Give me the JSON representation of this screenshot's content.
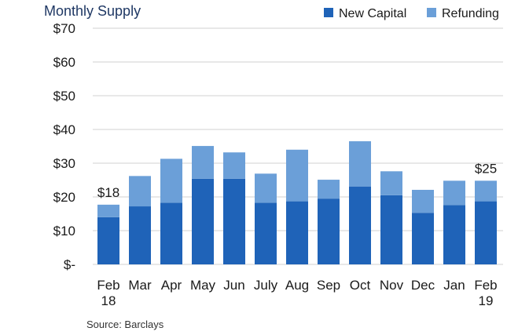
{
  "chart_data": {
    "type": "bar",
    "stacked": true,
    "title": "Monthly Supply",
    "categories": [
      [
        "Feb",
        "18"
      ],
      [
        "Mar"
      ],
      [
        "Apr"
      ],
      [
        "May"
      ],
      [
        "Jun"
      ],
      [
        "July"
      ],
      [
        "Aug"
      ],
      [
        "Sep"
      ],
      [
        "Oct"
      ],
      [
        "Nov"
      ],
      [
        "Dec"
      ],
      [
        "Jan"
      ],
      [
        "Feb",
        "19"
      ]
    ],
    "series": [
      {
        "name": "New Capital",
        "color": "#1f63b8",
        "values": [
          14,
          17.2,
          18.3,
          25.4,
          25.4,
          18.3,
          18.7,
          19.5,
          23.1,
          20.5,
          15.3,
          17.6,
          18.7
        ]
      },
      {
        "name": "Refunding",
        "color": "#6b9fd8",
        "values": [
          3.7,
          9.0,
          13.0,
          9.7,
          7.8,
          8.6,
          15.3,
          5.6,
          13.4,
          7.1,
          6.8,
          7.2,
          6.1
        ]
      }
    ],
    "y_ticks": [
      "$-",
      "$10",
      "$20",
      "$30",
      "$40",
      "$50",
      "$60",
      "$70"
    ],
    "ylim": [
      0,
      70
    ],
    "grid": true,
    "legend": "top-right",
    "data_labels": [
      {
        "category_index": 0,
        "text": "$18"
      },
      {
        "category_index": 12,
        "text": "$25"
      }
    ]
  },
  "source_text": "Source: Barclays"
}
